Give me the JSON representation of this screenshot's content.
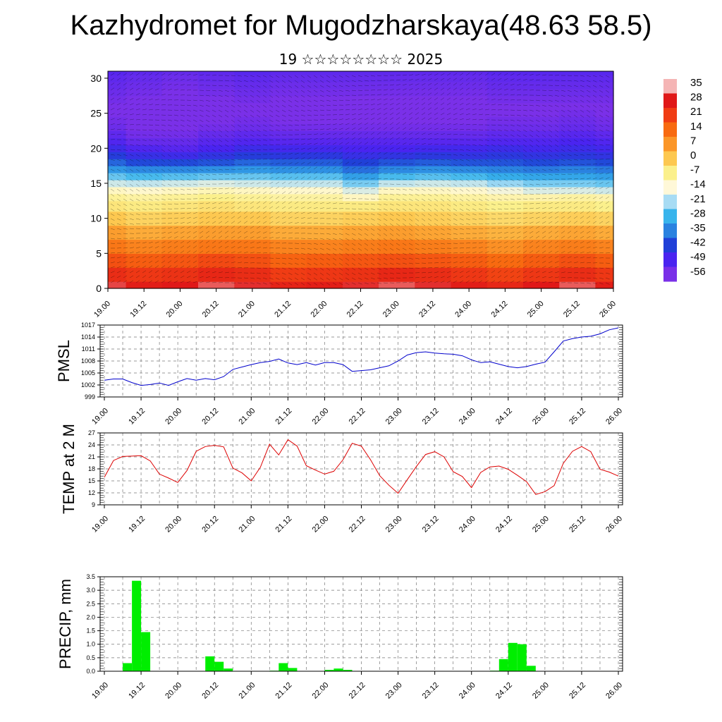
{
  "header": {
    "title": "Kazhydromet for Mugodzharskaya(48.63 58.5)",
    "subtitle": "19 ☆☆☆☆☆☆☆☆ 2025"
  },
  "time_ticks": [
    "19.00",
    "19.12",
    "20.00",
    "20.12",
    "21.00",
    "21.12",
    "22.00",
    "22.12",
    "23.00",
    "23.12",
    "24.00",
    "24.12",
    "25.00",
    "25.12",
    "26.00"
  ],
  "chart_data": [
    {
      "type": "heatmap",
      "title": "",
      "xlabel": "",
      "ylabel": "",
      "x": [
        "19.00",
        "19.12",
        "20.00",
        "20.12",
        "21.00",
        "21.12",
        "22.00",
        "22.12",
        "23.00",
        "23.12",
        "24.00",
        "24.12",
        "25.00",
        "25.12",
        "26.00"
      ],
      "ylim": [
        0,
        31
      ],
      "yticks": [
        0,
        5,
        10,
        15,
        20,
        25,
        30
      ],
      "colorbar": {
        "labels": [
          "35",
          "28",
          "21",
          "14",
          "7",
          "0",
          "-7",
          "-14",
          "-21",
          "-28",
          "-35",
          "-42",
          "-49",
          "-56"
        ],
        "values": [
          35,
          28,
          21,
          14,
          7,
          0,
          -7,
          -14,
          -21,
          -28,
          -35,
          -42,
          -49,
          -56
        ],
        "colors": [
          "#f5b5b5",
          "#e01818",
          "#f03c14",
          "#f86a10",
          "#fb9628",
          "#fdc850",
          "#fbf08c",
          "#fff8d8",
          "#a8dcf4",
          "#38b4ec",
          "#2a82e0",
          "#2040d8",
          "#4a24f0",
          "#7a30e8"
        ]
      },
      "overlay": "wind barbs",
      "levels_km": [
        0,
        2,
        4,
        6,
        8,
        10,
        12,
        13,
        14,
        15,
        16,
        17,
        18,
        19,
        20,
        21,
        22,
        23,
        24,
        25,
        26,
        27,
        28,
        29,
        30,
        31
      ],
      "grid_values_C": [
        [
          30,
          27,
          28,
          31,
          29,
          26,
          27,
          29,
          31,
          29,
          27,
          25,
          28,
          31,
          27
        ],
        [
          24,
          22,
          23,
          25,
          24,
          21,
          22,
          23,
          25,
          24,
          22,
          20,
          22,
          24,
          22
        ],
        [
          18,
          16,
          17,
          19,
          18,
          15,
          16,
          17,
          18,
          17,
          16,
          14,
          16,
          18,
          16
        ],
        [
          12,
          10,
          11,
          12,
          12,
          10,
          10,
          11,
          12,
          11,
          10,
          8,
          10,
          11,
          10
        ],
        [
          6,
          4,
          5,
          6,
          6,
          4,
          4,
          5,
          6,
          5,
          4,
          3,
          4,
          5,
          4
        ],
        [
          0,
          -2,
          -1,
          0,
          0,
          -2,
          -2,
          -1,
          0,
          -1,
          -2,
          -3,
          -2,
          -1,
          -2
        ],
        [
          -5,
          -6,
          -5,
          -4,
          -5,
          -6,
          -6,
          -6,
          -5,
          -5,
          -6,
          -7,
          -6,
          -6,
          -7
        ],
        [
          -8,
          -9,
          -8,
          -7,
          -8,
          -9,
          -9,
          -12,
          -8,
          -8,
          -9,
          -10,
          -10,
          -9,
          -10
        ],
        [
          -12,
          -13,
          -12,
          -11,
          -12,
          -13,
          -13,
          -17,
          -12,
          -12,
          -13,
          -15,
          -17,
          -17,
          -18
        ],
        [
          -18,
          -19,
          -18,
          -17,
          -18,
          -19,
          -19,
          -24,
          -19,
          -18,
          -19,
          -22,
          -24,
          -24,
          -25
        ],
        [
          -25,
          -27,
          -26,
          -25,
          -25,
          -26,
          -26,
          -31,
          -27,
          -26,
          -27,
          -29,
          -30,
          -30,
          -31
        ],
        [
          -32,
          -34,
          -34,
          -33,
          -32,
          -33,
          -33,
          -37,
          -34,
          -33,
          -34,
          -35,
          -36,
          -35,
          -36
        ],
        [
          -38,
          -41,
          -41,
          -40,
          -38,
          -39,
          -39,
          -42,
          -40,
          -39,
          -40,
          -40,
          -41,
          -40,
          -41
        ],
        [
          -43,
          -46,
          -47,
          -45,
          -43,
          -44,
          -44,
          -46,
          -45,
          -44,
          -45,
          -44,
          -45,
          -44,
          -45
        ],
        [
          -47,
          -50,
          -51,
          -49,
          -47,
          -48,
          -48,
          -49,
          -49,
          -48,
          -48,
          -47,
          -48,
          -47,
          -48
        ],
        [
          -50,
          -53,
          -53,
          -51,
          -50,
          -51,
          -51,
          -51,
          -51,
          -51,
          -51,
          -50,
          -50,
          -49,
          -50
        ],
        [
          -52,
          -55,
          -55,
          -53,
          -52,
          -53,
          -53,
          -53,
          -53,
          -53,
          -53,
          -52,
          -52,
          -51,
          -52
        ],
        [
          -54,
          -56,
          -56,
          -55,
          -54,
          -55,
          -55,
          -55,
          -55,
          -55,
          -55,
          -54,
          -54,
          -53,
          -54
        ],
        [
          -55,
          -56,
          -57,
          -56,
          -55,
          -56,
          -56,
          -56,
          -56,
          -56,
          -56,
          -55,
          -55,
          -54,
          -55
        ],
        [
          -56,
          -57,
          -57,
          -57,
          -56,
          -57,
          -57,
          -57,
          -57,
          -57,
          -57,
          -56,
          -56,
          -55,
          -56
        ],
        [
          -56,
          -57,
          -58,
          -57,
          -56,
          -57,
          -57,
          -57,
          -57,
          -57,
          -57,
          -56,
          -56,
          -56,
          -56
        ],
        [
          -55,
          -56,
          -57,
          -56,
          -55,
          -56,
          -56,
          -56,
          -56,
          -56,
          -56,
          -55,
          -55,
          -55,
          -55
        ],
        [
          -54,
          -55,
          -56,
          -55,
          -54,
          -55,
          -55,
          -55,
          -55,
          -55,
          -55,
          -54,
          -54,
          -54,
          -54
        ],
        [
          -53,
          -54,
          -55,
          -54,
          -53,
          -54,
          -54,
          -54,
          -54,
          -54,
          -54,
          -53,
          -53,
          -53,
          -53
        ],
        [
          -52,
          -53,
          -54,
          -53,
          -52,
          -53,
          -53,
          -53,
          -53,
          -53,
          -53,
          -52,
          -52,
          -52,
          -52
        ],
        [
          -51,
          -52,
          -53,
          -52,
          -51,
          -52,
          -52,
          -52,
          -52,
          -52,
          -52,
          -51,
          -51,
          -51,
          -51
        ]
      ]
    },
    {
      "type": "line",
      "title": "",
      "xlabel": "",
      "ylabel": "PMSL",
      "ylim": [
        999,
        1017
      ],
      "yticks": [
        999,
        1002,
        1005,
        1008,
        1011,
        1014,
        1017
      ],
      "x": [
        "19.00",
        "19.03",
        "19.06",
        "19.09",
        "19.12",
        "19.15",
        "19.18",
        "19.21",
        "20.00",
        "20.03",
        "20.06",
        "20.09",
        "20.12",
        "20.15",
        "20.18",
        "20.21",
        "21.00",
        "21.03",
        "21.06",
        "21.09",
        "21.12",
        "21.15",
        "21.18",
        "21.21",
        "22.00",
        "22.03",
        "22.06",
        "22.09",
        "22.12",
        "22.15",
        "22.18",
        "22.21",
        "23.00",
        "23.03",
        "23.06",
        "23.09",
        "23.12",
        "23.15",
        "23.18",
        "23.21",
        "24.00",
        "24.03",
        "24.06",
        "24.09",
        "24.12",
        "24.15",
        "24.18",
        "24.21",
        "25.00",
        "25.03",
        "25.06",
        "25.09",
        "25.12",
        "25.15",
        "25.18",
        "25.21",
        "26.00"
      ],
      "series": [
        {
          "color": "#0000cc",
          "values": [
            1003.2,
            1003.5,
            1003.5,
            1002.6,
            1001.9,
            1002.1,
            1002.5,
            1001.9,
            1002.8,
            1003.6,
            1003.2,
            1003.6,
            1003.3,
            1004.1,
            1005.9,
            1006.5,
            1007.1,
            1007.6,
            1007.9,
            1008.5,
            1007.5,
            1007.1,
            1007.6,
            1007.0,
            1007.6,
            1007.6,
            1007.1,
            1005.4,
            1005.6,
            1005.8,
            1006.3,
            1006.8,
            1008.0,
            1009.5,
            1010.1,
            1010.3,
            1010.0,
            1009.8,
            1009.7,
            1009.3,
            1008.3,
            1007.6,
            1007.8,
            1007.2,
            1006.6,
            1006.3,
            1006.6,
            1007.2,
            1007.7,
            1010.3,
            1013.0,
            1013.6,
            1014.0,
            1014.2,
            1014.8,
            1015.8,
            1016.3
          ]
        }
      ]
    },
    {
      "type": "line",
      "title": "",
      "xlabel": "",
      "ylabel": "TEMP at 2 M",
      "ylim": [
        9,
        27
      ],
      "yticks": [
        9,
        12,
        15,
        18,
        21,
        24,
        27
      ],
      "x": [
        "19.00",
        "19.03",
        "19.06",
        "19.09",
        "19.12",
        "19.15",
        "19.18",
        "19.21",
        "20.00",
        "20.03",
        "20.06",
        "20.09",
        "20.12",
        "20.15",
        "20.18",
        "20.21",
        "21.00",
        "21.03",
        "21.06",
        "21.09",
        "21.12",
        "21.15",
        "21.18",
        "21.21",
        "22.00",
        "22.03",
        "22.06",
        "22.09",
        "22.12",
        "22.15",
        "22.18",
        "22.21",
        "23.00",
        "23.03",
        "23.06",
        "23.09",
        "23.12",
        "23.15",
        "23.18",
        "23.21",
        "24.00",
        "24.03",
        "24.06",
        "24.09",
        "24.12",
        "24.15",
        "24.18",
        "24.21",
        "25.00",
        "25.03",
        "25.06",
        "25.09",
        "25.12",
        "25.15",
        "25.18",
        "25.21",
        "26.00"
      ],
      "series": [
        {
          "color": "#dd0000",
          "values": [
            15.9,
            20.1,
            21.1,
            21.2,
            21.3,
            20.0,
            16.7,
            15.7,
            14.6,
            17.6,
            22.4,
            23.6,
            23.9,
            23.5,
            18.2,
            17.0,
            15.0,
            18.4,
            24.2,
            21.5,
            25.3,
            23.7,
            18.8,
            17.7,
            16.7,
            17.4,
            20.3,
            24.4,
            23.7,
            20.3,
            16.3,
            13.9,
            11.9,
            15.3,
            18.6,
            21.6,
            22.3,
            21.0,
            17.3,
            16.1,
            13.3,
            17.1,
            18.5,
            18.7,
            17.9,
            16.4,
            14.8,
            11.6,
            12.3,
            13.8,
            19.4,
            22.4,
            23.6,
            22.3,
            17.9,
            17.2,
            16.2
          ]
        }
      ]
    },
    {
      "type": "bar",
      "title": "",
      "xlabel": "",
      "ylabel": "PRECIP, mm",
      "ylim": [
        0,
        3.5
      ],
      "yticks": [
        "0.0",
        "0.5",
        "1.0",
        "1.5",
        "2.0",
        "2.5",
        "3.0",
        "3.5"
      ],
      "categories": [
        "19.00",
        "19.03",
        "19.06",
        "19.09",
        "19.12",
        "19.15",
        "19.18",
        "19.21",
        "20.00",
        "20.03",
        "20.06",
        "20.09",
        "20.12",
        "20.15",
        "20.18",
        "20.21",
        "21.00",
        "21.03",
        "21.06",
        "21.09",
        "21.12",
        "21.15",
        "21.18",
        "21.21",
        "22.00",
        "22.03",
        "22.06",
        "22.09",
        "22.12",
        "22.15",
        "22.18",
        "22.21",
        "23.00",
        "23.03",
        "23.06",
        "23.09",
        "23.12",
        "23.15",
        "23.18",
        "23.21",
        "24.00",
        "24.03",
        "24.06",
        "24.09",
        "24.12",
        "24.15",
        "24.18",
        "24.21",
        "25.00",
        "25.03",
        "25.06",
        "25.09",
        "25.12",
        "25.15",
        "25.18",
        "25.21"
      ],
      "series": [
        {
          "color": "#00ee00",
          "values": [
            0,
            0,
            0.3,
            3.35,
            1.45,
            0,
            0,
            0,
            0,
            0,
            0,
            0.55,
            0.35,
            0.1,
            0,
            0,
            0,
            0,
            0.02,
            0.3,
            0.12,
            0,
            0,
            0,
            0.05,
            0.1,
            0.05,
            0,
            0.01,
            0,
            0,
            0,
            0,
            0,
            0,
            0,
            0,
            0,
            0,
            0,
            0,
            0,
            0.02,
            0.45,
            1.05,
            1.0,
            0.2,
            0,
            0,
            0,
            0,
            0,
            0,
            0,
            0,
            0
          ]
        }
      ]
    }
  ]
}
